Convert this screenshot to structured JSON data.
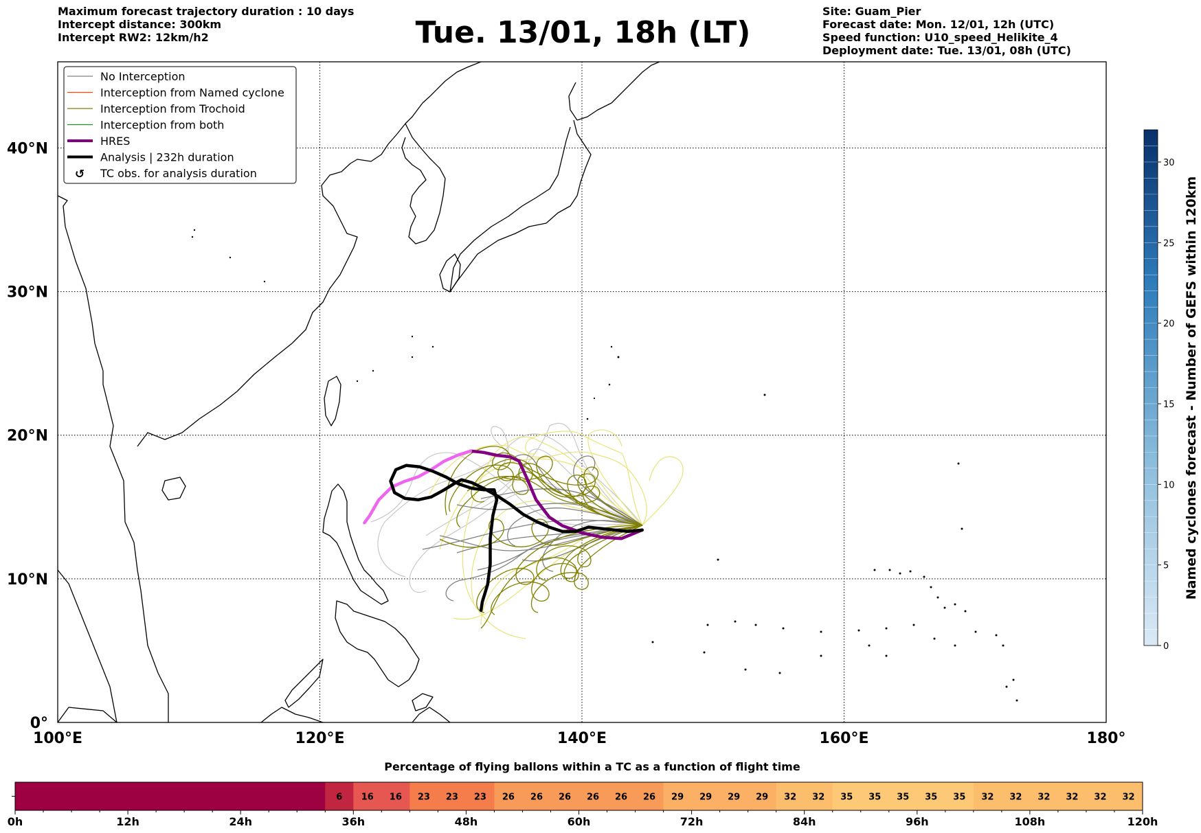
{
  "header": {
    "left_lines": [
      "Maximum forecast trajectory duration : 10 days",
      "Intercept distance: 300km",
      "Intercept RW2: 12km/h2"
    ],
    "title": "Tue. 13/01, 18h (LT)",
    "right_lines": [
      "Site: Guam_Pier",
      "Forecast date: Mon. 12/01, 12h (UTC)",
      "Speed function: U10_speed_Helikite_4",
      "Deployment date: Tue. 13/01, 08h (UTC)"
    ]
  },
  "colors": {
    "no_interception": "#808080",
    "named_cyclone": "#ff4500",
    "trochoid": "#808000",
    "both": "#228b22",
    "hres": "#800080",
    "hres_early": "#ee66ee",
    "analysis": "#000000",
    "light_gray_track": "#c8c8c8",
    "light_yellow_track": "#e8e47a"
  },
  "chart_data": [
    {
      "type": "map-trajectories",
      "projection": "PlateCarree",
      "xlim": [
        100,
        180
      ],
      "ylim": [
        0,
        46
      ],
      "xticks": [
        100,
        120,
        140,
        160,
        180
      ],
      "xtick_labels": [
        "100°E",
        "120°E",
        "140°E",
        "160°E",
        "180°"
      ],
      "yticks": [
        0,
        10,
        20,
        30,
        40
      ],
      "ytick_labels": [
        "0°",
        "10°N",
        "20°N",
        "30°N",
        "40°N"
      ],
      "grid": true,
      "legend_position": "upper-left",
      "legend": [
        {
          "label": "No Interception",
          "style": "thin",
          "color": "#808080"
        },
        {
          "label": "Interception from Named cyclone",
          "style": "thin",
          "color": "#ff4500"
        },
        {
          "label": "Interception from Trochoid",
          "style": "thin",
          "color": "#808000"
        },
        {
          "label": "Interception from both",
          "style": "thin",
          "color": "#228b22"
        },
        {
          "label": "HRES",
          "style": "thick",
          "color": "#800080"
        },
        {
          "label": "Analysis | 232h duration",
          "style": "thick",
          "color": "#000000"
        },
        {
          "label": "TC obs. for analysis duration",
          "style": "marker",
          "color": "#000000"
        }
      ],
      "launch_site": [
        144.6,
        13.4
      ],
      "series": [
        {
          "name": "HRES",
          "color": "#800080",
          "points": [
            [
              144.6,
              13.4
            ],
            [
              143,
              12.8
            ],
            [
              141.5,
              12.9
            ],
            [
              140,
              13.2
            ],
            [
              138.5,
              13.7
            ],
            [
              137.5,
              14.3
            ],
            [
              136.5,
              15.5
            ],
            [
              135.8,
              17
            ],
            [
              135.2,
              18.2
            ],
            [
              134.5,
              18.5
            ],
            [
              133.5,
              18.6
            ],
            [
              132.5,
              18.8
            ],
            [
              131.5,
              18.9
            ]
          ]
        },
        {
          "name": "HRES",
          "color": "#ee66ee",
          "points": [
            [
              131.5,
              18.9
            ],
            [
              130.5,
              18.6
            ],
            [
              129.5,
              18.2
            ],
            [
              128.5,
              17.6
            ],
            [
              127.5,
              17.1
            ],
            [
              126.5,
              16.8
            ],
            [
              125.5,
              16.4
            ],
            [
              124.5,
              15.5
            ],
            [
              123.8,
              14.4
            ],
            [
              123.4,
              13.9
            ]
          ]
        },
        {
          "name": "Analysis | 232h duration",
          "color": "#000000",
          "points": [
            [
              144.6,
              13.4
            ],
            [
              143.5,
              13.3
            ],
            [
              142.5,
              13.4
            ],
            [
              141.5,
              13.5
            ],
            [
              140.5,
              13.6
            ],
            [
              139.5,
              13.3
            ],
            [
              138.5,
              13.3
            ],
            [
              137.5,
              13.6
            ],
            [
              136.5,
              14
            ],
            [
              135.5,
              14.5
            ],
            [
              134.5,
              15.2
            ],
            [
              133.5,
              15.8
            ],
            [
              132.5,
              16.3
            ],
            [
              131.6,
              16.7
            ],
            [
              130.8,
              16.9
            ],
            [
              130.2,
              16.6
            ],
            [
              129.5,
              16.2
            ],
            [
              128.5,
              15.7
            ],
            [
              127.5,
              15.5
            ],
            [
              126.5,
              15.6
            ],
            [
              125.7,
              16
            ],
            [
              125.4,
              16.8
            ],
            [
              125.8,
              17.6
            ],
            [
              126.6,
              17.9
            ],
            [
              127.6,
              17.8
            ],
            [
              128.6,
              17.5
            ],
            [
              129.6,
              17.1
            ],
            [
              130.6,
              16.6
            ],
            [
              131.6,
              16.3
            ],
            [
              132.5,
              16.2
            ],
            [
              133.3,
              16.2
            ],
            [
              133.5,
              15.5
            ],
            [
              133.2,
              14.4
            ],
            [
              133.0,
              12.8
            ],
            [
              133.0,
              11.0
            ],
            [
              132.8,
              9.6
            ],
            [
              132.4,
              8.4
            ],
            [
              132.3,
              7.8
            ]
          ]
        }
      ]
    },
    {
      "type": "bar",
      "title": "Percentage of flying ballons within a TC as a function of flight time",
      "x_range": [
        0,
        120
      ],
      "bin_width_hours": 3,
      "tick_step_hours": 12,
      "xtick_labels": [
        "0h",
        "12h",
        "24h",
        "36h",
        "48h",
        "60h",
        "72h",
        "84h",
        "96h",
        "108h",
        "120h"
      ],
      "segments": [
        {
          "start": 0,
          "end": 33,
          "value": 0,
          "label": ""
        },
        {
          "start": 33,
          "end": 36,
          "value": 6,
          "label": "6"
        },
        {
          "start": 36,
          "end": 39,
          "value": 16,
          "label": "16"
        },
        {
          "start": 39,
          "end": 42,
          "value": 16,
          "label": "16"
        },
        {
          "start": 42,
          "end": 45,
          "value": 23,
          "label": "23"
        },
        {
          "start": 45,
          "end": 48,
          "value": 23,
          "label": "23"
        },
        {
          "start": 48,
          "end": 51,
          "value": 23,
          "label": "23"
        },
        {
          "start": 51,
          "end": 54,
          "value": 26,
          "label": "26"
        },
        {
          "start": 54,
          "end": 57,
          "value": 26,
          "label": "26"
        },
        {
          "start": 57,
          "end": 60,
          "value": 26,
          "label": "26"
        },
        {
          "start": 60,
          "end": 63,
          "value": 26,
          "label": "26"
        },
        {
          "start": 63,
          "end": 66,
          "value": 26,
          "label": "26"
        },
        {
          "start": 66,
          "end": 69,
          "value": 26,
          "label": "26"
        },
        {
          "start": 69,
          "end": 72,
          "value": 29,
          "label": "29"
        },
        {
          "start": 72,
          "end": 75,
          "value": 29,
          "label": "29"
        },
        {
          "start": 75,
          "end": 78,
          "value": 29,
          "label": "29"
        },
        {
          "start": 78,
          "end": 81,
          "value": 29,
          "label": "29"
        },
        {
          "start": 81,
          "end": 84,
          "value": 32,
          "label": "32"
        },
        {
          "start": 84,
          "end": 87,
          "value": 32,
          "label": "32"
        },
        {
          "start": 87,
          "end": 90,
          "value": 35,
          "label": "35"
        },
        {
          "start": 90,
          "end": 93,
          "value": 35,
          "label": "35"
        },
        {
          "start": 93,
          "end": 96,
          "value": 35,
          "label": "35"
        },
        {
          "start": 96,
          "end": 99,
          "value": 35,
          "label": "35"
        },
        {
          "start": 99,
          "end": 102,
          "value": 35,
          "label": "35"
        },
        {
          "start": 102,
          "end": 105,
          "value": 32,
          "label": "32"
        },
        {
          "start": 105,
          "end": 108,
          "value": 32,
          "label": "32"
        },
        {
          "start": 108,
          "end": 111,
          "value": 32,
          "label": "32"
        },
        {
          "start": 111,
          "end": 114,
          "value": 32,
          "label": "32"
        },
        {
          "start": 114,
          "end": 117,
          "value": 32,
          "label": "32"
        },
        {
          "start": 117,
          "end": 120,
          "value": 32,
          "label": "32"
        }
      ],
      "colors_by_value": {
        "0": "#9e0142",
        "6": "#c2253f",
        "16": "#e55750",
        "23": "#f57c4b",
        "26": "#f89b58",
        "29": "#fbb066",
        "32": "#fcbd6c",
        "35": "#fdc976"
      }
    },
    {
      "type": "colorbar",
      "label": "Named cyclones forecast - Number of GEFS within 120km",
      "range": [
        0,
        32
      ],
      "ticks": [
        0,
        5,
        10,
        15,
        20,
        25,
        30
      ],
      "color_low": "#dbe9f6",
      "color_high": "#08306b"
    }
  ]
}
